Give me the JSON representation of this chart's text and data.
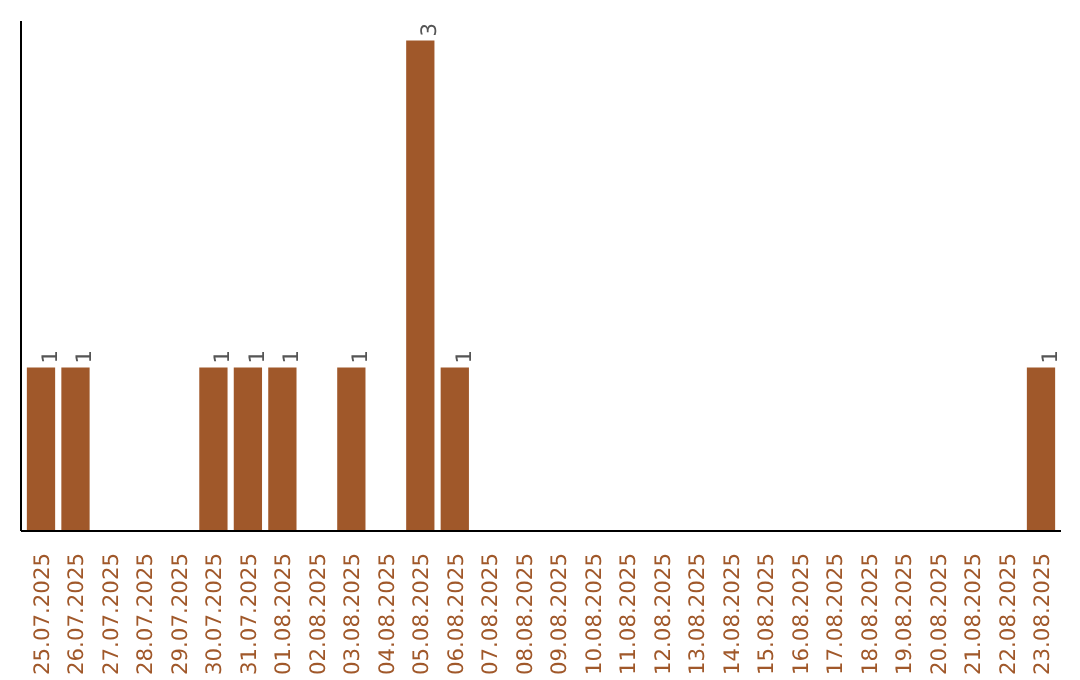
{
  "chart_data": {
    "type": "bar",
    "categories": [
      "25.07.2025",
      "26.07.2025",
      "27.07.2025",
      "28.07.2025",
      "29.07.2025",
      "30.07.2025",
      "31.07.2025",
      "01.08.2025",
      "02.08.2025",
      "03.08.2025",
      "04.08.2025",
      "05.08.2025",
      "06.08.2025",
      "07.08.2025",
      "08.08.2025",
      "09.08.2025",
      "10.08.2025",
      "11.08.2025",
      "12.08.2025",
      "13.08.2025",
      "14.08.2025",
      "15.08.2025",
      "16.08.2025",
      "17.08.2025",
      "18.08.2025",
      "19.08.2025",
      "20.08.2025",
      "21.08.2025",
      "22.08.2025",
      "23.08.2025"
    ],
    "values": [
      1,
      1,
      0,
      0,
      0,
      1,
      1,
      1,
      0,
      1,
      0,
      3,
      1,
      0,
      0,
      0,
      0,
      0,
      0,
      0,
      0,
      0,
      0,
      0,
      0,
      0,
      0,
      0,
      0,
      1
    ],
    "value_labels": [
      "1",
      "1",
      null,
      null,
      null,
      "1",
      "1",
      "1",
      null,
      "1",
      null,
      "3",
      "1",
      null,
      null,
      null,
      null,
      null,
      null,
      null,
      null,
      null,
      null,
      null,
      null,
      null,
      null,
      null,
      null,
      "1"
    ],
    "color": "#a0582a",
    "grid": false
  }
}
